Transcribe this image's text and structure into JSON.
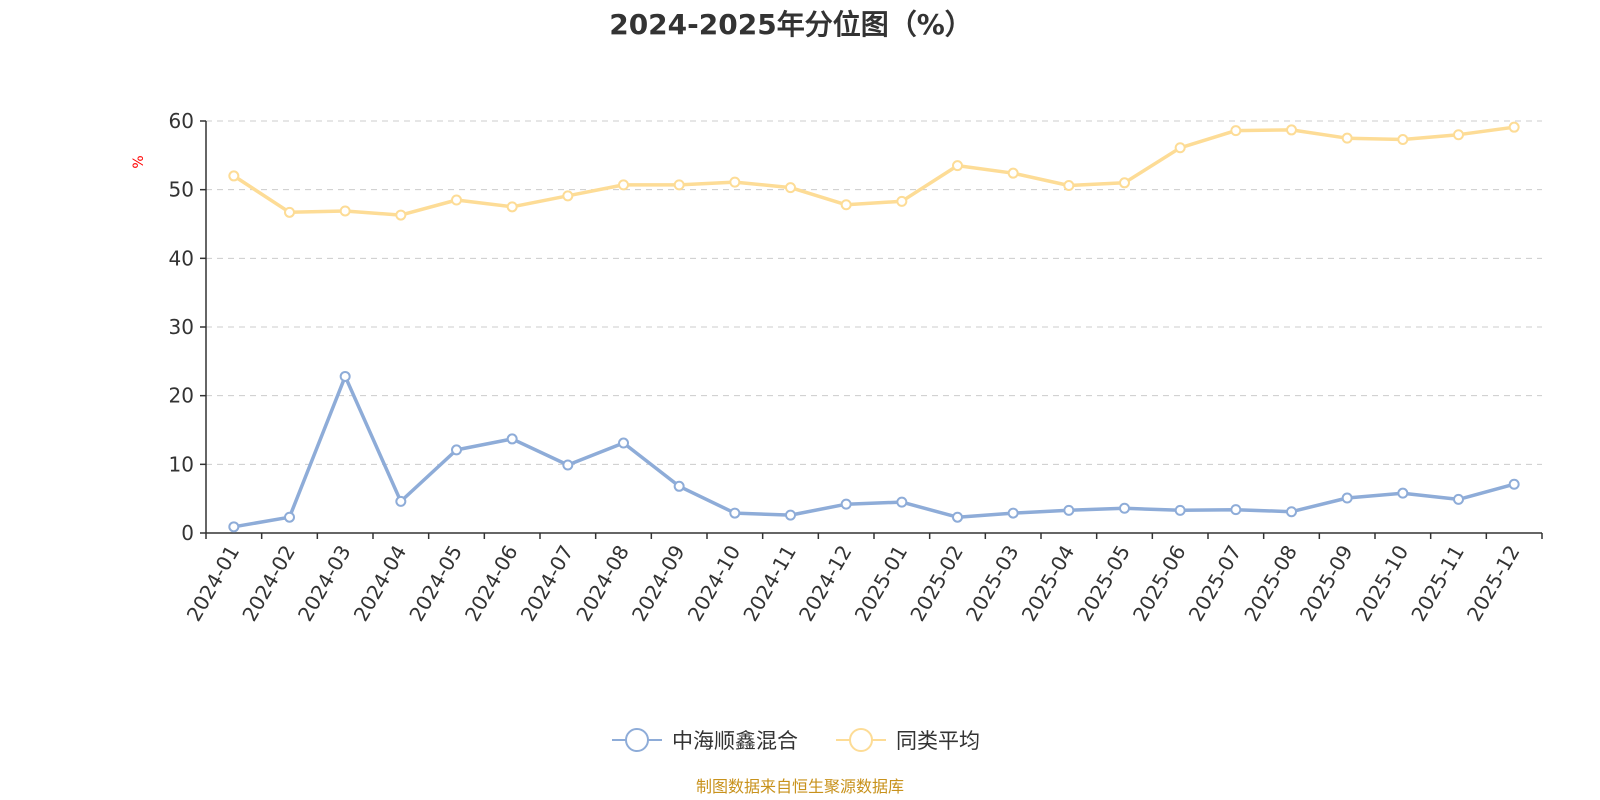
{
  "chart_data": {
    "type": "line",
    "title": "2024-2025年分位图（%）",
    "y_unit": "%",
    "xlabel": "",
    "ylabel": "%",
    "ylim": [
      0,
      60
    ],
    "y_ticks": [
      0,
      10,
      20,
      30,
      40,
      50,
      60
    ],
    "grid": true,
    "legend_position": "bottom-center",
    "categories": [
      "2024-01",
      "2024-02",
      "2024-03",
      "2024-04",
      "2024-05",
      "2024-06",
      "2024-07",
      "2024-08",
      "2024-09",
      "2024-10",
      "2024-11",
      "2024-12",
      "2025-01",
      "2025-02",
      "2025-03",
      "2025-04",
      "2025-05",
      "2025-06",
      "2025-07",
      "2025-08",
      "2025-09",
      "2025-10",
      "2025-11",
      "2025-12"
    ],
    "series": [
      {
        "name": "中海顺鑫混合",
        "color": "#8eacd8",
        "values": [
          0.9,
          2.3,
          22.8,
          4.6,
          12.1,
          13.7,
          9.9,
          13.1,
          6.8,
          2.9,
          2.6,
          4.2,
          4.5,
          2.3,
          2.9,
          3.3,
          3.6,
          3.3,
          3.4,
          3.1,
          5.1,
          5.8,
          4.9,
          7.1
        ]
      },
      {
        "name": "同类平均",
        "color": "#fddc96",
        "values": [
          52.0,
          46.7,
          46.9,
          46.3,
          48.5,
          47.5,
          49.1,
          50.7,
          50.7,
          51.1,
          50.3,
          47.8,
          48.3,
          53.5,
          52.4,
          50.6,
          51.0,
          56.1,
          58.6,
          58.7,
          57.5,
          57.3,
          58.0,
          59.1
        ]
      }
    ]
  },
  "footer": {
    "source": "制图数据来自恒生聚源数据库"
  }
}
